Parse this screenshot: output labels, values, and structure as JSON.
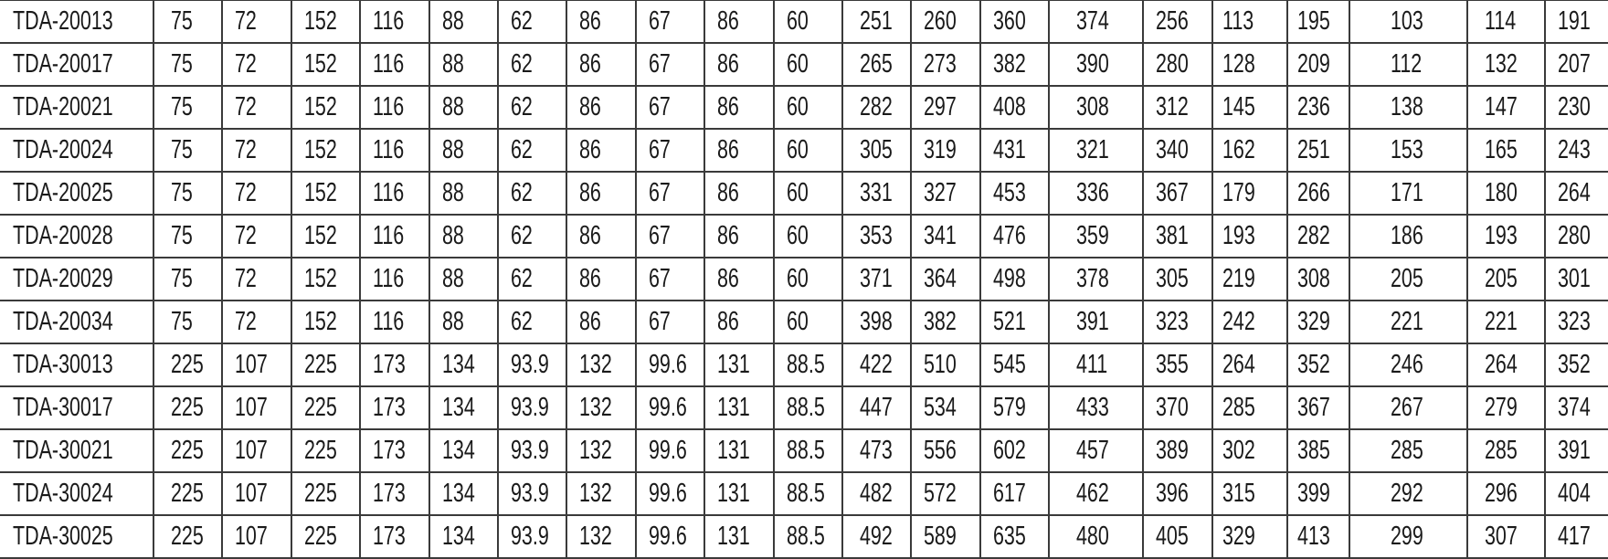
{
  "table": {
    "rows": [
      [
        "TDA-20013",
        "75",
        "72",
        "152",
        "116",
        "88",
        "62",
        "86",
        "67",
        "86",
        "60",
        "251",
        "260",
        "360",
        "374",
        "256",
        "113",
        "195",
        "103",
        "114",
        "191"
      ],
      [
        "TDA-20017",
        "75",
        "72",
        "152",
        "116",
        "88",
        "62",
        "86",
        "67",
        "86",
        "60",
        "265",
        "273",
        "382",
        "390",
        "280",
        "128",
        "209",
        "112",
        "132",
        "207"
      ],
      [
        "TDA-20021",
        "75",
        "72",
        "152",
        "116",
        "88",
        "62",
        "86",
        "67",
        "86",
        "60",
        "282",
        "297",
        "408",
        "308",
        "312",
        "145",
        "236",
        "138",
        "147",
        "230"
      ],
      [
        "TDA-20024",
        "75",
        "72",
        "152",
        "116",
        "88",
        "62",
        "86",
        "67",
        "86",
        "60",
        "305",
        "319",
        "431",
        "321",
        "340",
        "162",
        "251",
        "153",
        "165",
        "243"
      ],
      [
        "TDA-20025",
        "75",
        "72",
        "152",
        "116",
        "88",
        "62",
        "86",
        "67",
        "86",
        "60",
        "331",
        "327",
        "453",
        "336",
        "367",
        "179",
        "266",
        "171",
        "180",
        "264"
      ],
      [
        "TDA-20028",
        "75",
        "72",
        "152",
        "116",
        "88",
        "62",
        "86",
        "67",
        "86",
        "60",
        "353",
        "341",
        "476",
        "359",
        "381",
        "193",
        "282",
        "186",
        "193",
        "280"
      ],
      [
        "TDA-20029",
        "75",
        "72",
        "152",
        "116",
        "88",
        "62",
        "86",
        "67",
        "86",
        "60",
        "371",
        "364",
        "498",
        "378",
        "305",
        "219",
        "308",
        "205",
        "205",
        "301"
      ],
      [
        "TDA-20034",
        "75",
        "72",
        "152",
        "116",
        "88",
        "62",
        "86",
        "67",
        "86",
        "60",
        "398",
        "382",
        "521",
        "391",
        "323",
        "242",
        "329",
        "221",
        "221",
        "323"
      ],
      [
        "TDA-30013",
        "225",
        "107",
        "225",
        "173",
        "134",
        "93.9",
        "132",
        "99.6",
        "131",
        "88.5",
        "422",
        "510",
        "545",
        "411",
        "355",
        "264",
        "352",
        "246",
        "264",
        "352"
      ],
      [
        "TDA-30017",
        "225",
        "107",
        "225",
        "173",
        "134",
        "93.9",
        "132",
        "99.6",
        "131",
        "88.5",
        "447",
        "534",
        "579",
        "433",
        "370",
        "285",
        "367",
        "267",
        "279",
        "374"
      ],
      [
        "TDA-30021",
        "225",
        "107",
        "225",
        "173",
        "134",
        "93.9",
        "132",
        "99.6",
        "131",
        "88.5",
        "473",
        "556",
        "602",
        "457",
        "389",
        "302",
        "385",
        "285",
        "285",
        "391"
      ],
      [
        "TDA-30024",
        "225",
        "107",
        "225",
        "173",
        "134",
        "93.9",
        "132",
        "99.6",
        "131",
        "88.5",
        "482",
        "572",
        "617",
        "462",
        "396",
        "315",
        "399",
        "292",
        "296",
        "404"
      ],
      [
        "TDA-30025",
        "225",
        "107",
        "225",
        "173",
        "134",
        "93.9",
        "132",
        "99.6",
        "131",
        "88.5",
        "492",
        "589",
        "635",
        "480",
        "405",
        "329",
        "413",
        "299",
        "307",
        "417"
      ]
    ]
  }
}
